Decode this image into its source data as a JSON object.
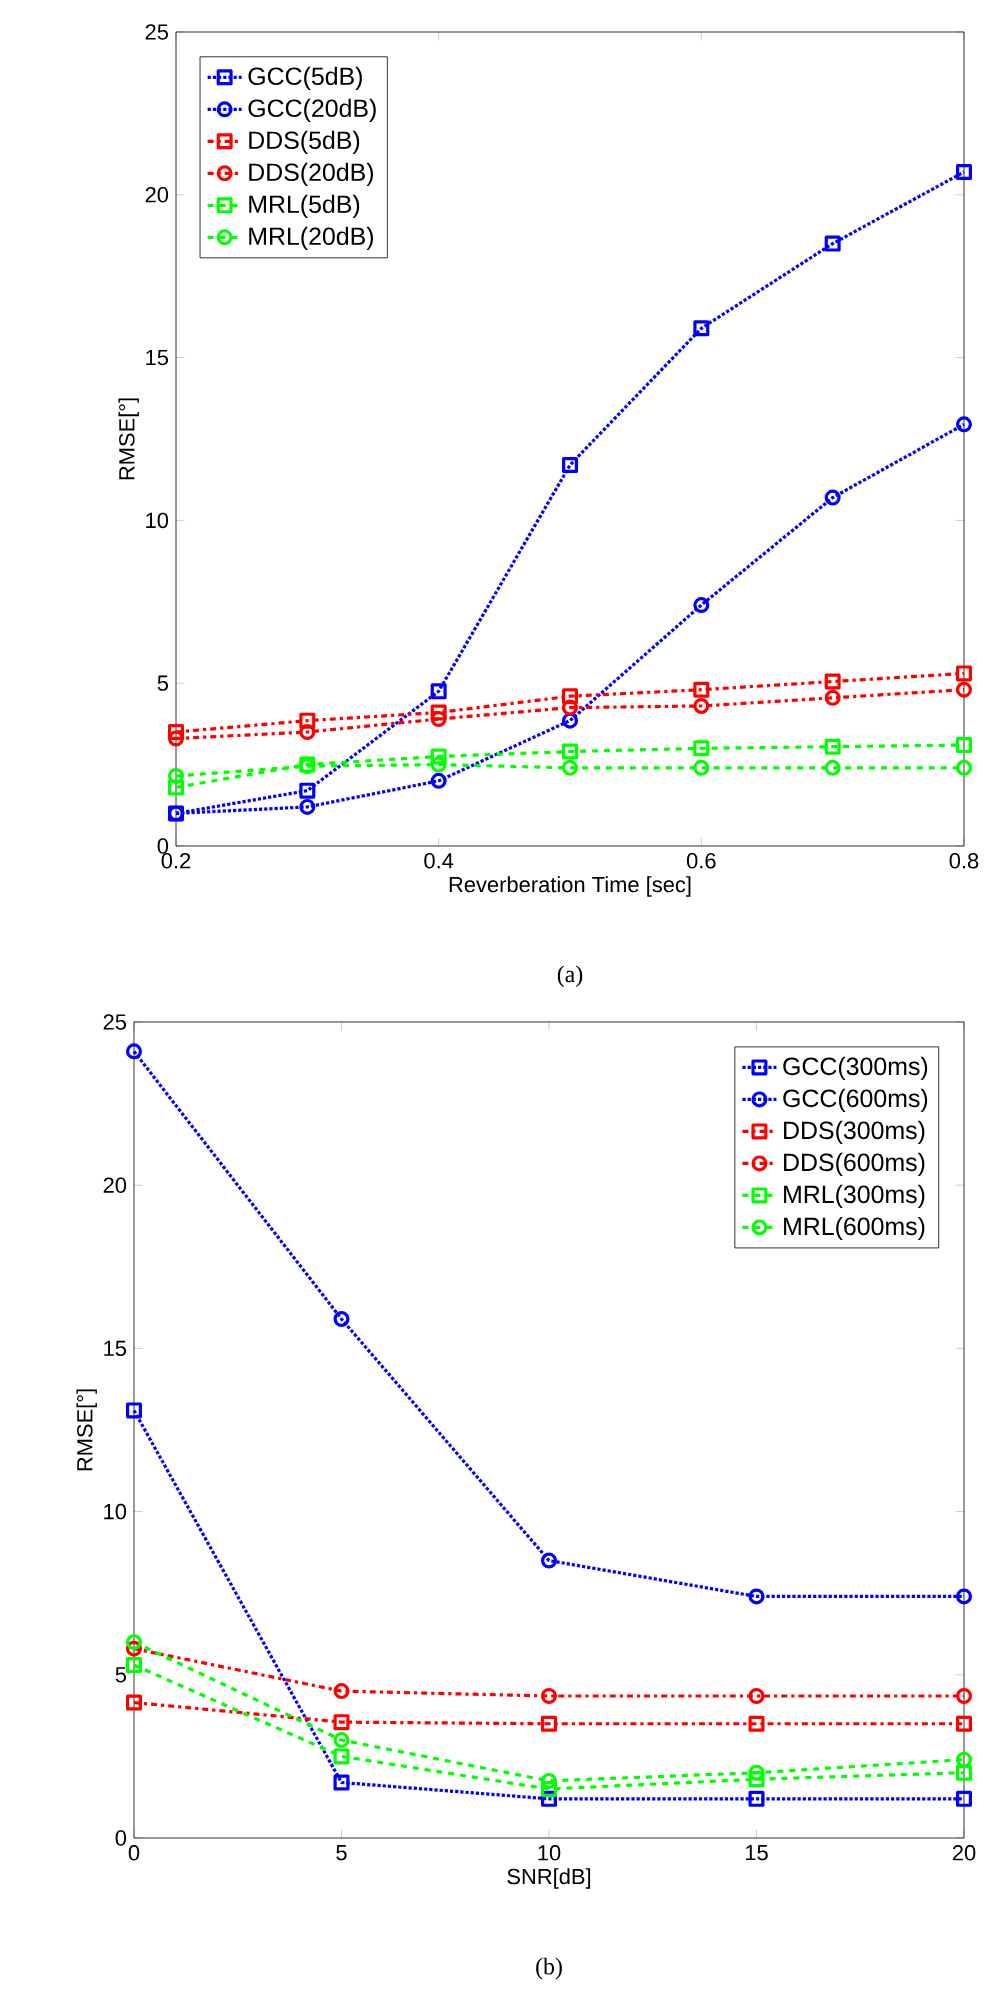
{
  "chart_data": [
    {
      "type": "line",
      "xlabel": "Reverberation Time [sec]",
      "ylabel": "RMSE[°]",
      "annotations": [
        "(a)"
      ],
      "x": [
        0.2,
        0.3,
        0.4,
        0.5,
        0.6,
        0.7,
        0.8
      ],
      "xlim": [
        0.2,
        0.8
      ],
      "xticks": [
        0.2,
        0.4,
        0.6,
        0.8
      ],
      "ylim": [
        0,
        25
      ],
      "yticks": [
        0,
        5,
        10,
        15,
        20,
        25
      ],
      "grid": false,
      "legend": "top left",
      "series": [
        {
          "name": "GCC(5dB)",
          "color": "#0000ff",
          "marker": "square",
          "line_style": "dotted",
          "values": [
            1.0,
            1.7,
            4.75,
            11.7,
            15.9,
            18.5,
            20.7
          ]
        },
        {
          "name": "GCC(20dB)",
          "color": "#0000ff",
          "marker": "circle",
          "line_style": "dotted",
          "values": [
            1.0,
            1.2,
            2.0,
            3.85,
            7.4,
            10.7,
            12.95
          ]
        },
        {
          "name": "DDS(5dB)",
          "color": "#ff0000",
          "marker": "square",
          "line_style": "dashdot",
          "values": [
            3.5,
            3.85,
            4.1,
            4.6,
            4.8,
            5.05,
            5.3
          ]
        },
        {
          "name": "DDS(20dB)",
          "color": "#ff0000",
          "marker": "circle",
          "line_style": "dashdot",
          "values": [
            3.3,
            3.5,
            3.9,
            4.25,
            4.3,
            4.55,
            4.8
          ]
        },
        {
          "name": "MRL(5dB)",
          "color": "#00ff00",
          "marker": "square",
          "line_style": "dashed",
          "values": [
            1.8,
            2.5,
            2.75,
            2.9,
            3.0,
            3.05,
            3.1
          ]
        },
        {
          "name": "MRL(20dB)",
          "color": "#00ff00",
          "marker": "circle",
          "line_style": "dashed",
          "values": [
            2.15,
            2.45,
            2.5,
            2.4,
            2.4,
            2.4,
            2.4
          ]
        }
      ]
    },
    {
      "type": "line",
      "xlabel": "SNR[dB]",
      "ylabel": "RMSE[°]",
      "annotations": [
        "(b)"
      ],
      "x": [
        0,
        5,
        10,
        15,
        20
      ],
      "xlim": [
        0,
        20
      ],
      "xticks": [
        0,
        5,
        10,
        15,
        20
      ],
      "ylim": [
        0,
        25
      ],
      "yticks": [
        0,
        5,
        10,
        15,
        20,
        25
      ],
      "grid": false,
      "legend": "top right",
      "series": [
        {
          "name": "GCC(300ms)",
          "color": "#0000ff",
          "marker": "square",
          "line_style": "dotted",
          "values": [
            13.1,
            1.7,
            1.2,
            1.2,
            1.2
          ]
        },
        {
          "name": "GCC(600ms)",
          "color": "#0000ff",
          "marker": "circle",
          "line_style": "dotted",
          "values": [
            24.1,
            15.9,
            8.5,
            7.4,
            7.4
          ]
        },
        {
          "name": "DDS(300ms)",
          "color": "#ff0000",
          "marker": "square",
          "line_style": "dashdot",
          "values": [
            4.15,
            3.55,
            3.5,
            3.5,
            3.5
          ]
        },
        {
          "name": "DDS(600ms)",
          "color": "#ff0000",
          "marker": "circle",
          "line_style": "dashdot",
          "values": [
            5.8,
            4.5,
            4.35,
            4.35,
            4.35
          ]
        },
        {
          "name": "MRL(300ms)",
          "color": "#00ff00",
          "marker": "square",
          "line_style": "dashed",
          "values": [
            5.3,
            2.5,
            1.5,
            1.8,
            2.0
          ]
        },
        {
          "name": "MRL(600ms)",
          "color": "#00ff00",
          "marker": "circle",
          "line_style": "dashed",
          "values": [
            6.0,
            3.0,
            1.75,
            2.0,
            2.4
          ]
        }
      ]
    }
  ]
}
